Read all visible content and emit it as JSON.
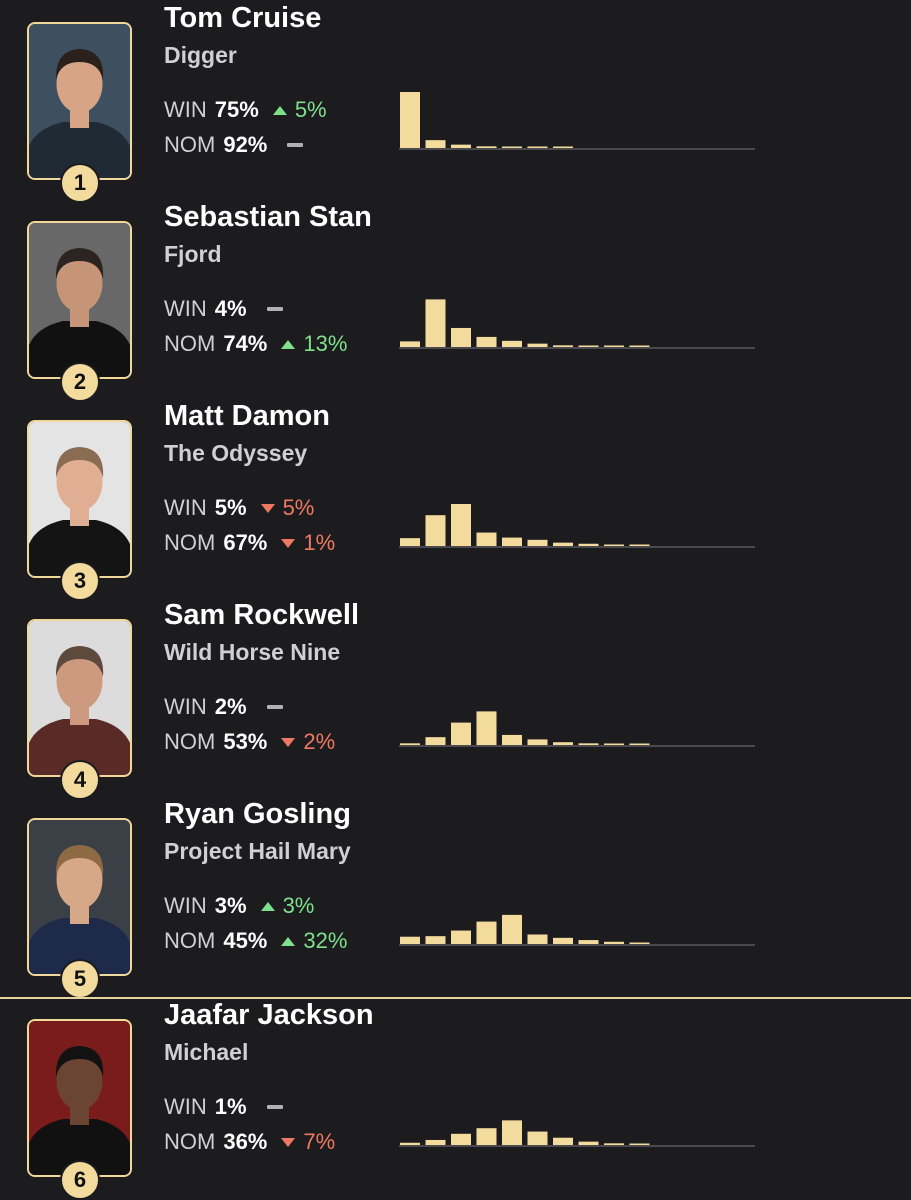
{
  "colors": {
    "accent": "#f3db9d",
    "up": "#7ee08d",
    "down": "#ef7862",
    "flat": "#b0b0b5",
    "bg": "#1c1c1e"
  },
  "labels": {
    "win": "WIN",
    "nom": "NOM"
  },
  "nominees": [
    {
      "rank": "1",
      "name": "Tom Cruise",
      "film": "Digger",
      "win": "75%",
      "win_dir": "up",
      "win_change": "5%",
      "nom": "92%",
      "nom_dir": "flat",
      "nom_change": "",
      "dist": [
        1.0,
        0.14,
        0.06,
        0.03,
        0.02,
        0.01,
        0.01
      ],
      "avatar": {
        "bg": "#3e5060",
        "skin": "#d7a585",
        "hair": "#2a211c",
        "shirt": "#1f2a35"
      }
    },
    {
      "rank": "2",
      "name": "Sebastian Stan",
      "film": "Fjord",
      "win": "4%",
      "win_dir": "flat",
      "win_change": "",
      "nom": "74%",
      "nom_dir": "up",
      "nom_change": "13%",
      "dist": [
        0.1,
        0.85,
        0.34,
        0.18,
        0.11,
        0.06,
        0.03,
        0.02,
        0.01,
        0.01
      ],
      "avatar": {
        "bg": "#686868",
        "skin": "#c69577",
        "hair": "#2c2420",
        "shirt": "#111111"
      }
    },
    {
      "rank": "3",
      "name": "Matt Damon",
      "film": "The Odyssey",
      "win": "5%",
      "win_dir": "down",
      "win_change": "5%",
      "nom": "67%",
      "nom_dir": "down",
      "nom_change": "1%",
      "dist": [
        0.14,
        0.55,
        0.75,
        0.24,
        0.15,
        0.11,
        0.06,
        0.04,
        0.02,
        0.01
      ],
      "avatar": {
        "bg": "#e4e4e4",
        "skin": "#dfae93",
        "hair": "#8a6c53",
        "shirt": "#141414"
      }
    },
    {
      "rank": "4",
      "name": "Sam Rockwell",
      "film": "Wild Horse Nine",
      "win": "2%",
      "win_dir": "flat",
      "win_change": "",
      "nom": "53%",
      "nom_dir": "down",
      "nom_change": "2%",
      "dist": [
        0.03,
        0.14,
        0.4,
        0.6,
        0.18,
        0.1,
        0.05,
        0.03,
        0.02,
        0.01
      ],
      "avatar": {
        "bg": "#dcdcdc",
        "skin": "#cd9a7f",
        "hair": "#5d4a3d",
        "shirt": "#5a2a27"
      }
    },
    {
      "rank": "5",
      "name": "Ryan Gosling",
      "film": "Project Hail Mary",
      "win": "3%",
      "win_dir": "up",
      "win_change": "3%",
      "nom": "45%",
      "nom_dir": "up",
      "nom_change": "32%",
      "dist": [
        0.13,
        0.14,
        0.24,
        0.4,
        0.52,
        0.17,
        0.11,
        0.07,
        0.04,
        0.02
      ],
      "avatar": {
        "bg": "#3b4047",
        "skin": "#d6a888",
        "hair": "#8e6a44",
        "shirt": "#1d2a4a"
      }
    },
    {
      "rank": "6",
      "name": "Jaafar Jackson",
      "film": "Michael",
      "win": "1%",
      "win_dir": "flat",
      "win_change": "",
      "nom": "36%",
      "nom_dir": "down",
      "nom_change": "7%",
      "dist": [
        0.04,
        0.09,
        0.2,
        0.3,
        0.44,
        0.24,
        0.13,
        0.06,
        0.03,
        0.01
      ],
      "avatar": {
        "bg": "#7a1c1c",
        "skin": "#6b4534",
        "hair": "#121212",
        "shirt": "#111111"
      }
    }
  ]
}
